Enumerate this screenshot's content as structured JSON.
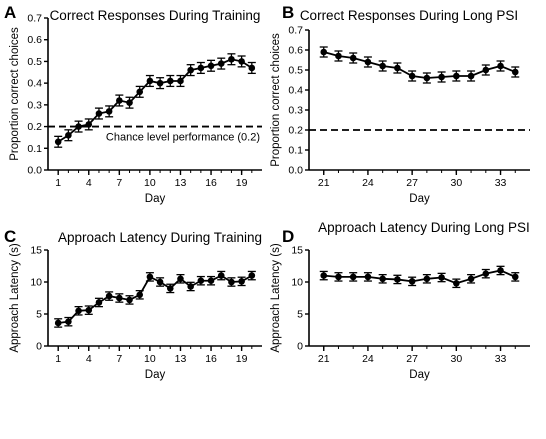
{
  "chart_data": [
    {
      "panel": "A",
      "type": "line",
      "title": "Correct Responses During Training",
      "xlabel": "Day",
      "ylabel": "Proportion correct choices",
      "xlim": [
        0,
        21
      ],
      "ylim": [
        0,
        0.7
      ],
      "xticks": [
        1,
        4,
        7,
        10,
        13,
        16,
        19
      ],
      "yticks": [
        0.0,
        0.1,
        0.2,
        0.3,
        0.4,
        0.5,
        0.6,
        0.7
      ],
      "ytick_labels": [
        "0.0",
        "0.1",
        "0.2",
        "0.3",
        "0.4",
        "0.5",
        "0.6",
        "0.7"
      ],
      "x": [
        1,
        2,
        3,
        4,
        5,
        6,
        7,
        8,
        9,
        10,
        11,
        12,
        13,
        14,
        15,
        16,
        17,
        18,
        19,
        20
      ],
      "y": [
        0.13,
        0.16,
        0.2,
        0.21,
        0.26,
        0.27,
        0.32,
        0.31,
        0.36,
        0.41,
        0.4,
        0.41,
        0.41,
        0.46,
        0.47,
        0.48,
        0.49,
        0.51,
        0.5,
        0.47
      ],
      "err": [
        0.025,
        0.025,
        0.025,
        0.025,
        0.025,
        0.025,
        0.025,
        0.025,
        0.025,
        0.025,
        0.025,
        0.025,
        0.025,
        0.025,
        0.025,
        0.025,
        0.025,
        0.025,
        0.025,
        0.025
      ],
      "reference_line": {
        "y": 0.2,
        "style": "dashed",
        "label": "Chance level performance (0.2)"
      }
    },
    {
      "panel": "B",
      "type": "line",
      "title": "Correct Responses During Long PSI",
      "xlabel": "Day",
      "ylabel": "Proportion correct choices",
      "xlim": [
        20,
        35
      ],
      "ylim": [
        0,
        0.7
      ],
      "xticks": [
        21,
        24,
        27,
        30,
        33
      ],
      "yticks": [
        0.0,
        0.1,
        0.2,
        0.3,
        0.4,
        0.5,
        0.6,
        0.7
      ],
      "ytick_labels": [
        "0.0",
        "0.1",
        "0.2",
        "0.3",
        "0.4",
        "0.5",
        "0.6",
        "0.7"
      ],
      "x": [
        21,
        22,
        23,
        24,
        25,
        26,
        27,
        28,
        29,
        30,
        31,
        32,
        33,
        34
      ],
      "y": [
        0.59,
        0.57,
        0.56,
        0.54,
        0.52,
        0.51,
        0.47,
        0.46,
        0.465,
        0.47,
        0.47,
        0.5,
        0.52,
        0.49
      ],
      "err": [
        0.025,
        0.025,
        0.025,
        0.025,
        0.025,
        0.025,
        0.025,
        0.025,
        0.025,
        0.025,
        0.025,
        0.025,
        0.025,
        0.025
      ],
      "reference_line": {
        "y": 0.2,
        "style": "dashed",
        "label": ""
      }
    },
    {
      "panel": "C",
      "type": "line",
      "title": "Approach Latency During Training",
      "xlabel": "Day",
      "ylabel": "Approach Latency (s)",
      "xlim": [
        0,
        21
      ],
      "ylim": [
        0,
        15
      ],
      "xticks": [
        1,
        4,
        7,
        10,
        13,
        16,
        19
      ],
      "yticks": [
        0,
        5,
        10,
        15
      ],
      "ytick_labels": [
        "0",
        "5",
        "10",
        "15"
      ],
      "x": [
        1,
        2,
        3,
        4,
        5,
        6,
        7,
        8,
        9,
        10,
        11,
        12,
        13,
        14,
        15,
        16,
        17,
        18,
        19,
        20
      ],
      "y": [
        3.6,
        3.8,
        5.5,
        5.6,
        6.8,
        7.8,
        7.5,
        7.2,
        8.0,
        10.8,
        10.0,
        9.0,
        10.5,
        9.3,
        10.2,
        10.2,
        11.0,
        10.0,
        10.1,
        11.0
      ],
      "err": [
        0.65,
        0.65,
        0.65,
        0.65,
        0.65,
        0.65,
        0.65,
        0.65,
        0.65,
        0.65,
        0.65,
        0.65,
        0.65,
        0.65,
        0.65,
        0.65,
        0.65,
        0.65,
        0.65,
        0.65
      ]
    },
    {
      "panel": "D",
      "type": "line",
      "title": "Approach Latency During Long PSI",
      "xlabel": "Day",
      "ylabel": "Approach Latency (s)",
      "xlim": [
        20,
        35
      ],
      "ylim": [
        0,
        15
      ],
      "xticks": [
        21,
        24,
        27,
        30,
        33
      ],
      "yticks": [
        0,
        5,
        10,
        15
      ],
      "ytick_labels": [
        "0",
        "5",
        "10",
        "15"
      ],
      "x": [
        21,
        22,
        23,
        24,
        25,
        26,
        27,
        28,
        29,
        30,
        31,
        32,
        33,
        34
      ],
      "y": [
        11.0,
        10.8,
        10.8,
        10.8,
        10.5,
        10.4,
        10.1,
        10.5,
        10.7,
        9.8,
        10.5,
        11.3,
        11.8,
        10.8
      ],
      "err": [
        0.65,
        0.65,
        0.65,
        0.65,
        0.65,
        0.65,
        0.65,
        0.65,
        0.65,
        0.65,
        0.65,
        0.65,
        0.65,
        0.65
      ]
    }
  ]
}
